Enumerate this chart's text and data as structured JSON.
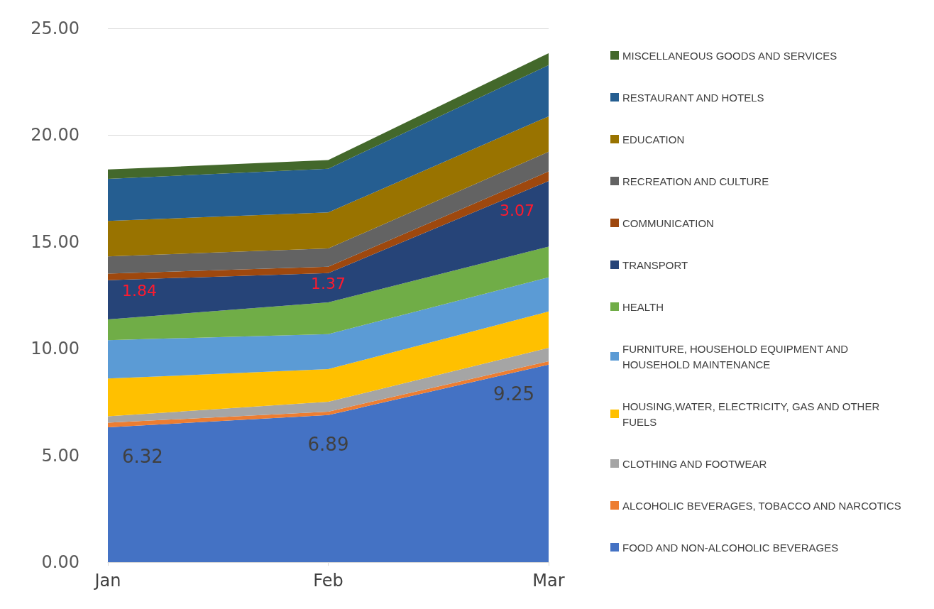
{
  "chart_data": {
    "type": "area",
    "stacked": true,
    "categories": [
      "Jan",
      "Feb",
      "Mar"
    ],
    "ylim": [
      0,
      25
    ],
    "yticks": [
      {
        "value": 0,
        "label": "0.00"
      },
      {
        "value": 5,
        "label": "5.00"
      },
      {
        "value": 10,
        "label": "10.00"
      },
      {
        "value": 15,
        "label": "15.00"
      },
      {
        "value": 20,
        "label": "20.00"
      },
      {
        "value": 25,
        "label": "25.00"
      }
    ],
    "grid": "y",
    "legend": "right",
    "series": [
      {
        "name": "FOOD AND NON-ALCOHOLIC BEVERAGES",
        "color": "#4472c4",
        "values": [
          6.32,
          6.89,
          9.25
        ],
        "value_labels": [
          "6.32",
          "6.89",
          "9.25"
        ]
      },
      {
        "name": "ALCOHOLIC BEVERAGES, TOBACCO AND NARCOTICS",
        "color": "#ed7d31",
        "values": [
          0.21,
          0.16,
          0.16
        ]
      },
      {
        "name": "CLOTHING AND FOOTWEAR",
        "color": "#a5a5a5",
        "values": [
          0.3,
          0.46,
          0.63
        ]
      },
      {
        "name": "HOUSING,WATER, ELECTRICITY, GAS AND OTHER FUELS",
        "color": "#ffc000",
        "values": [
          1.77,
          1.53,
          1.7
        ]
      },
      {
        "name": "FURNITURE, HOUSEHOLD EQUIPMENT AND HOUSEHOLD MAINTENANCE",
        "color": "#5b9bd5",
        "values": [
          1.8,
          1.64,
          1.6
        ]
      },
      {
        "name": "HEALTH",
        "color": "#70ad47",
        "values": [
          0.97,
          1.49,
          1.44
        ]
      },
      {
        "name": "TRANSPORT",
        "color": "#264478",
        "values": [
          1.84,
          1.37,
          3.07
        ],
        "value_labels": [
          "1.84",
          "1.37",
          "3.07"
        ]
      },
      {
        "name": "COMMUNICATION",
        "color": "#9e480e",
        "values": [
          0.3,
          0.3,
          0.45
        ]
      },
      {
        "name": "RECREATION AND CULTURE",
        "color": "#636363",
        "values": [
          0.81,
          0.85,
          0.92
        ]
      },
      {
        "name": "EDUCATION",
        "color": "#997300",
        "values": [
          1.66,
          1.69,
          1.66
        ]
      },
      {
        "name": "RESTAURANT AND HOTELS",
        "color": "#255e91",
        "values": [
          1.97,
          2.05,
          2.4
        ]
      },
      {
        "name": "MISCELLANEOUS GOODS AND SERVICES",
        "color": "#43682b",
        "values": [
          0.44,
          0.4,
          0.56
        ]
      }
    ]
  }
}
